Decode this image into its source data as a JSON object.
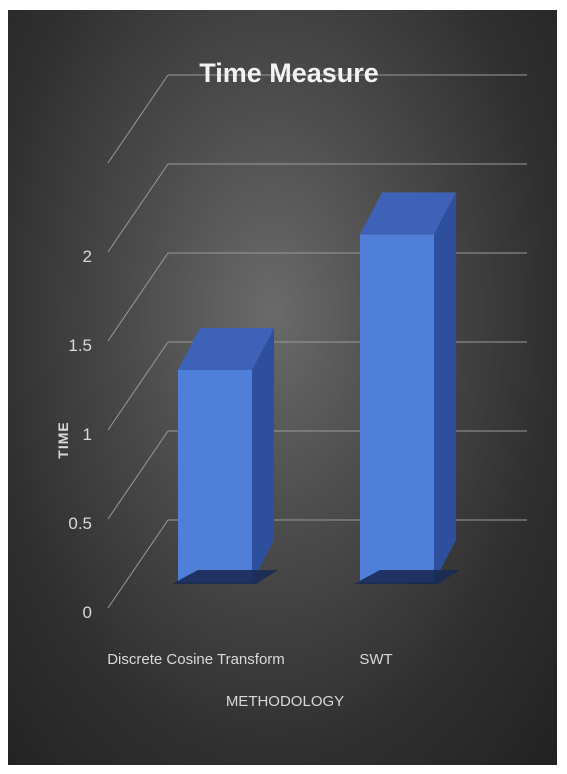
{
  "chart_data": {
    "type": "bar",
    "title": "Time Measure",
    "xlabel": "METHODOLOGY",
    "ylabel": "TIME",
    "categories": [
      "Discrete Cosine Transform",
      "SWT"
    ],
    "values": [
      1.25,
      2.05
    ],
    "ylim": [
      0,
      2.5
    ],
    "yticks": [
      0,
      0.5,
      1,
      1.5,
      2
    ],
    "ytick_labels": [
      "0",
      "0.5",
      "1",
      "1.5",
      "2"
    ],
    "grid": true,
    "legend": "none",
    "style": "3d-column",
    "colors": {
      "bar_front": "#4f7fd9",
      "bar_side": "#2e4f9e",
      "bar_top": "#3d62b8",
      "gridline": "#9a9a9a",
      "background": "#3f3f3f",
      "text": "#d9d9d9"
    }
  }
}
